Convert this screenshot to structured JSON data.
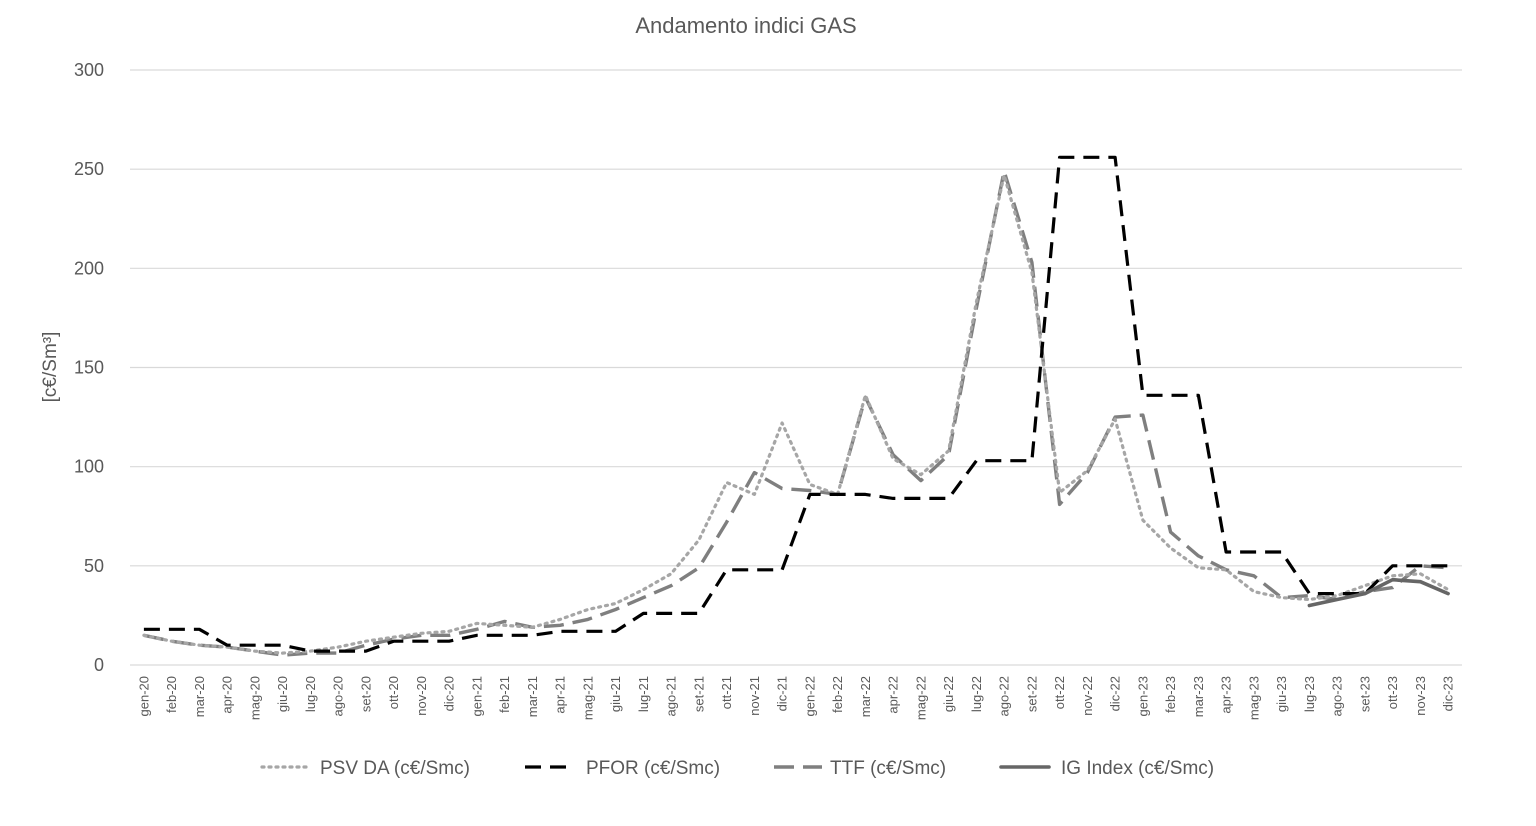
{
  "chart_data": {
    "type": "line",
    "title": "Andamento indici GAS",
    "xlabel": "",
    "ylabel": "[c€/Sm³]",
    "ylim": [
      0,
      300
    ],
    "yticks": [
      0,
      50,
      100,
      150,
      200,
      250,
      300
    ],
    "grid": "horizontal",
    "legend_position": "bottom",
    "categories": [
      "gen-20",
      "feb-20",
      "mar-20",
      "apr-20",
      "mag-20",
      "giu-20",
      "lug-20",
      "ago-20",
      "set-20",
      "ott-20",
      "nov-20",
      "dic-20",
      "gen-21",
      "feb-21",
      "mar-21",
      "apr-21",
      "mag-21",
      "giu-21",
      "lug-21",
      "ago-21",
      "set-21",
      "ott-21",
      "nov-21",
      "dic-21",
      "gen-22",
      "feb-22",
      "mar-22",
      "apr-22",
      "mag-22",
      "giu-22",
      "lug-22",
      "ago-22",
      "set-22",
      "ott-22",
      "nov-22",
      "dic-22",
      "gen-23",
      "feb-23",
      "mar-23",
      "apr-23",
      "mag-23",
      "giu-23",
      "lug-23",
      "ago-23",
      "set-23",
      "ott-23",
      "nov-23",
      "dic-23"
    ],
    "series": [
      {
        "name": "PSV DA (c€/Smc)",
        "color": "#a6a6a6",
        "style": "dotted",
        "values": [
          15,
          12,
          10,
          9,
          7,
          6,
          7,
          9,
          12,
          14,
          16,
          17,
          21,
          20,
          19,
          23,
          28,
          31,
          38,
          46,
          63,
          92,
          86,
          122,
          91,
          86,
          136,
          104,
          96,
          108,
          183,
          247,
          198,
          87,
          98,
          124,
          73,
          59,
          49,
          48,
          37,
          34,
          33,
          35,
          40,
          45,
          46,
          38
        ]
      },
      {
        "name": "PFOR (c€/Smc)",
        "color": "#000000",
        "style": "dashed",
        "values": [
          18,
          18,
          18,
          10,
          10,
          10,
          7,
          7,
          7,
          12,
          12,
          12,
          15,
          15,
          15,
          17,
          17,
          17,
          26,
          26,
          26,
          48,
          48,
          48,
          86,
          86,
          86,
          84,
          84,
          84,
          103,
          103,
          103,
          256,
          256,
          256,
          136,
          136,
          136,
          57,
          57,
          57,
          36,
          36,
          36,
          50,
          50,
          50
        ]
      },
      {
        "name": "TTF (c€/Smc)",
        "color": "#7f7f7f",
        "style": "dashed-long",
        "values": [
          15,
          12,
          10,
          9,
          7,
          5,
          6,
          6,
          10,
          13,
          15,
          15,
          18,
          22,
          19,
          20,
          23,
          28,
          34,
          40,
          49,
          72,
          97,
          89,
          88,
          86,
          135,
          106,
          93,
          106,
          180,
          249,
          203,
          81,
          97,
          125,
          126,
          67,
          55,
          48,
          45,
          34,
          35,
          33,
          37,
          39,
          50,
          49
        ]
      },
      {
        "name": "IG Index (c€/Smc)",
        "color": "#666666",
        "style": "solid",
        "values": [
          null,
          null,
          null,
          null,
          null,
          null,
          null,
          null,
          null,
          null,
          null,
          null,
          null,
          null,
          null,
          null,
          null,
          null,
          null,
          null,
          null,
          null,
          null,
          null,
          null,
          null,
          null,
          null,
          null,
          null,
          null,
          null,
          null,
          null,
          null,
          null,
          null,
          null,
          null,
          null,
          null,
          null,
          30,
          33,
          36,
          43,
          42,
          36
        ]
      }
    ]
  }
}
